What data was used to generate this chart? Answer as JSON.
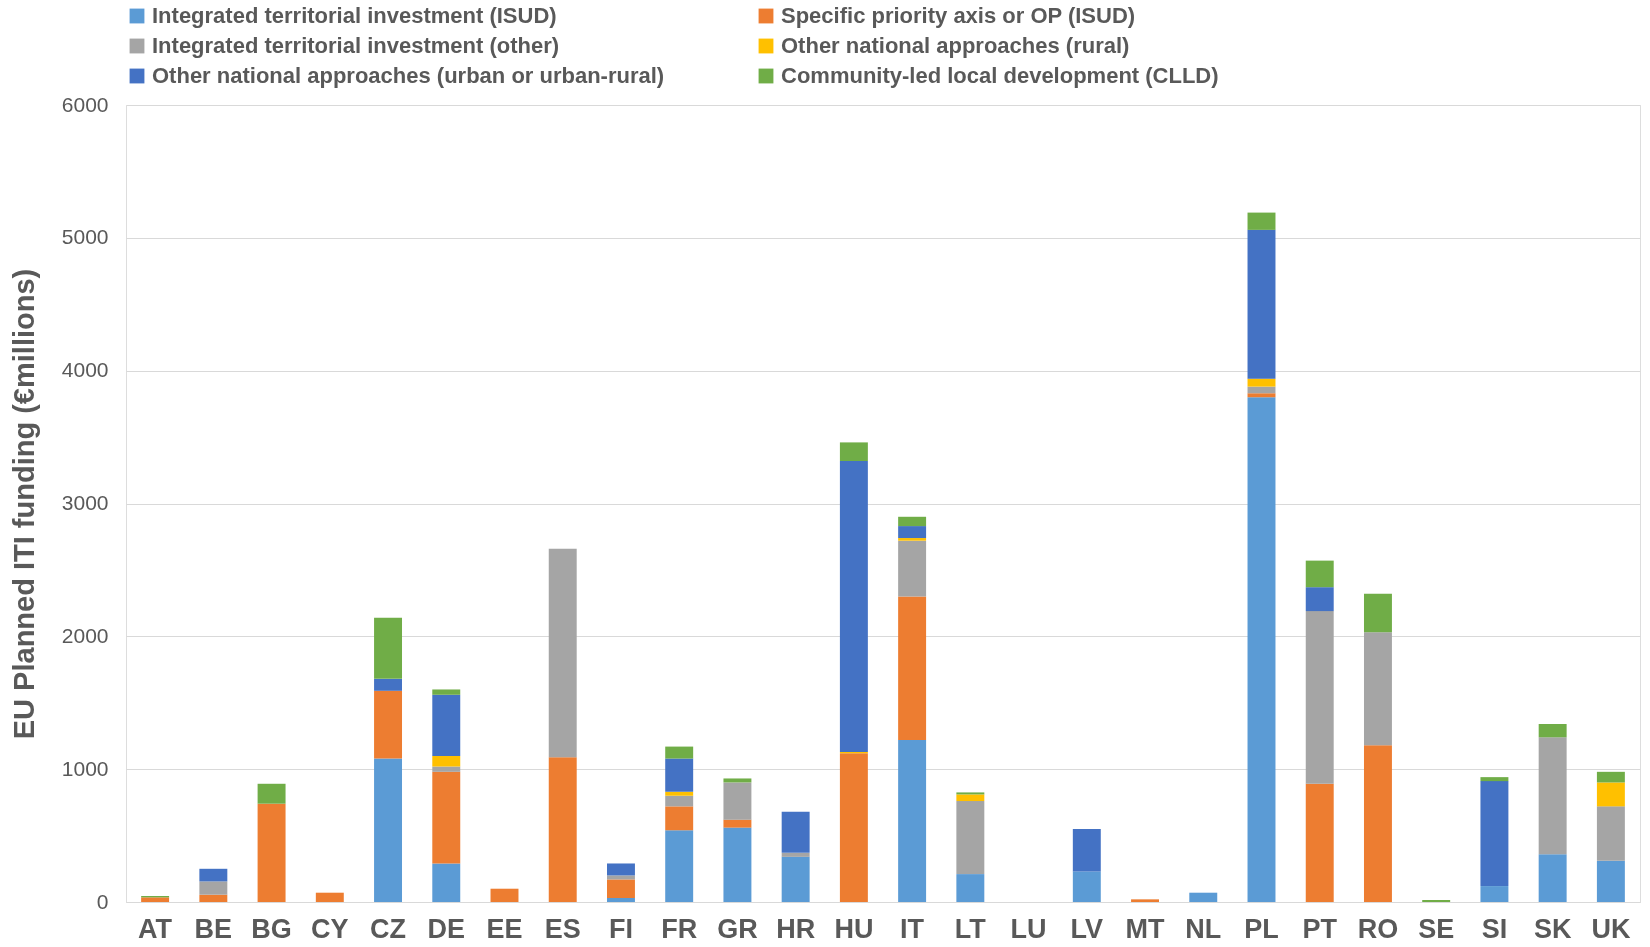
{
  "chart_data": {
    "type": "bar",
    "stacked": true,
    "ylabel": "EU Planned ITI funding (€millions)",
    "categories": [
      "AT",
      "BE",
      "BG",
      "CY",
      "CZ",
      "DE",
      "EE",
      "ES",
      "FI",
      "FR",
      "GR",
      "HR",
      "HU",
      "IT",
      "LT",
      "LU",
      "LV",
      "MT",
      "NL",
      "PL",
      "PT",
      "RO",
      "SE",
      "SI",
      "SK",
      "UK"
    ],
    "series": [
      {
        "name": "Integrated territorial investment (ISUD)",
        "color": "#5b9bd5",
        "values": [
          null,
          null,
          null,
          null,
          1080,
          290,
          null,
          null,
          30,
          540,
          560,
          340,
          null,
          1220,
          210,
          null,
          230,
          null,
          70,
          3800,
          null,
          null,
          null,
          120,
          360,
          310
        ]
      },
      {
        "name": "Specific priority axis or OP (ISUD)",
        "color": "#ed7d31",
        "values": [
          35,
          55,
          740,
          70,
          510,
          690,
          100,
          1090,
          140,
          180,
          60,
          null,
          1120,
          1080,
          null,
          null,
          null,
          20,
          null,
          30,
          890,
          1180,
          null,
          null,
          null,
          null
        ]
      },
      {
        "name": "Integrated territorial investment (other)",
        "color": "#a5a5a5",
        "values": [
          null,
          100,
          null,
          null,
          null,
          40,
          null,
          1570,
          30,
          80,
          280,
          30,
          null,
          420,
          550,
          null,
          null,
          null,
          null,
          50,
          1300,
          850,
          null,
          null,
          880,
          410
        ]
      },
      {
        "name": "Other national approaches (rural)",
        "color": "#ffc000",
        "values": [
          null,
          null,
          null,
          null,
          null,
          80,
          null,
          null,
          null,
          30,
          null,
          null,
          10,
          20,
          50,
          null,
          null,
          null,
          null,
          60,
          null,
          null,
          null,
          null,
          null,
          180
        ]
      },
      {
        "name": "Other national approaches (urban or urban-rural)",
        "color": "#4472c4",
        "values": [
          null,
          95,
          null,
          null,
          90,
          460,
          null,
          null,
          90,
          250,
          null,
          310,
          2190,
          90,
          null,
          null,
          320,
          null,
          null,
          1120,
          180,
          null,
          null,
          790,
          null,
          null
        ]
      },
      {
        "name": "Community-led local development (CLLD)",
        "color": "#70ad47",
        "values": [
          10,
          null,
          150,
          null,
          460,
          40,
          null,
          null,
          null,
          90,
          30,
          null,
          140,
          70,
          15,
          null,
          null,
          null,
          null,
          130,
          200,
          290,
          15,
          30,
          100,
          80
        ]
      }
    ],
    "ylim": [
      0,
      6000
    ],
    "yticks": [
      0,
      1000,
      2000,
      3000,
      4000,
      5000,
      6000
    ],
    "grid": "y",
    "legend": "top"
  }
}
